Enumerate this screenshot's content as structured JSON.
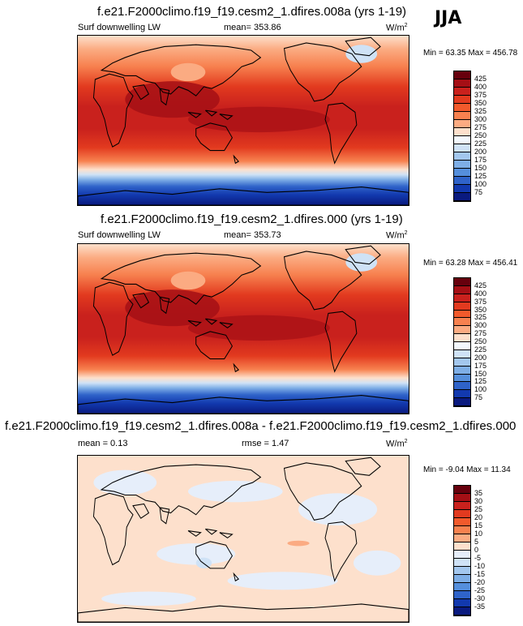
{
  "season": "JJA",
  "units_prefix": "W/m",
  "units_exp": "2",
  "panels": [
    {
      "title": "f.e21.F2000climo.f19_f19.cesm2_1.dfires.008a (yrs 1-19)",
      "left_label": "Surf downwelling LW",
      "stat1": "mean= 353.86",
      "stat2": "",
      "minmax": "Min = 63.35 Max = 456.78",
      "levels": [
        "425",
        "400",
        "375",
        "350",
        "325",
        "300",
        "275",
        "250",
        "225",
        "200",
        "175",
        "150",
        "125",
        "100",
        "75"
      ],
      "colors": [
        "#67000d",
        "#a50f15",
        "#c9211d",
        "#e23a1f",
        "#f25a2c",
        "#f7814f",
        "#fbab82",
        "#fde0cc",
        "#f3f8fd",
        "#cfe2f6",
        "#a3c7ee",
        "#7eaee6",
        "#558fdc",
        "#2f63c9",
        "#1239ae",
        "#0a1a7f"
      ]
    },
    {
      "title": "f.e21.F2000climo.f19_f19.cesm2_1.dfires.000 (yrs 1-19)",
      "left_label": "Surf downwelling LW",
      "stat1": "mean= 353.73",
      "stat2": "",
      "minmax": "Min = 63.28 Max = 456.41",
      "levels": [
        "425",
        "400",
        "375",
        "350",
        "325",
        "300",
        "275",
        "250",
        "225",
        "200",
        "175",
        "150",
        "125",
        "100",
        "75"
      ],
      "colors": [
        "#67000d",
        "#a50f15",
        "#c9211d",
        "#e23a1f",
        "#f25a2c",
        "#f7814f",
        "#fbab82",
        "#fde0cc",
        "#f3f8fd",
        "#cfe2f6",
        "#a3c7ee",
        "#7eaee6",
        "#558fdc",
        "#2f63c9",
        "#1239ae",
        "#0a1a7f"
      ]
    },
    {
      "title": "f.e21.F2000climo.f19_f19.cesm2_1.dfires.008a - f.e21.F2000climo.f19_f19.cesm2_1.dfires.000",
      "left_label": "mean =  0.13",
      "stat1": "rmse =  1.47",
      "stat2": "",
      "minmax": "Min = -9.04 Max = 11.34",
      "levels": [
        "35",
        "30",
        "25",
        "20",
        "15",
        "10",
        "5",
        "0",
        "-5",
        "-10",
        "-15",
        "-20",
        "-25",
        "-30",
        "-35"
      ],
      "colors": [
        "#67000d",
        "#a50f15",
        "#c9211d",
        "#e23a1f",
        "#f25a2c",
        "#f7814f",
        "#fbab82",
        "#fde0cc",
        "#e6eefa",
        "#cfe2f6",
        "#a3c7ee",
        "#7eaee6",
        "#558fdc",
        "#2f63c9",
        "#1239ae",
        "#0a1a7f"
      ]
    }
  ],
  "chart_data": [
    {
      "type": "heatmap",
      "title": "f.e21.F2000climo.f19_f19.cesm2_1.dfires.008a (yrs 1-19)",
      "variable": "Surf downwelling LW",
      "units": "W/m2",
      "mean": 353.86,
      "min": 63.35,
      "max": 456.78,
      "contour_levels": [
        75,
        100,
        125,
        150,
        175,
        200,
        225,
        250,
        275,
        300,
        325,
        350,
        375,
        400,
        425
      ]
    },
    {
      "type": "heatmap",
      "title": "f.e21.F2000climo.f19_f19.cesm2_1.dfires.000 (yrs 1-19)",
      "variable": "Surf downwelling LW",
      "units": "W/m2",
      "mean": 353.73,
      "min": 63.28,
      "max": 456.41,
      "contour_levels": [
        75,
        100,
        125,
        150,
        175,
        200,
        225,
        250,
        275,
        300,
        325,
        350,
        375,
        400,
        425
      ]
    },
    {
      "type": "heatmap",
      "title": "f.e21.F2000climo.f19_f19.cesm2_1.dfires.008a - f.e21.F2000climo.f19_f19.cesm2_1.dfires.000",
      "units": "W/m2",
      "mean": 0.13,
      "rmse": 1.47,
      "min": -9.04,
      "max": 11.34,
      "contour_levels": [
        -35,
        -30,
        -25,
        -20,
        -15,
        -10,
        -5,
        0,
        5,
        10,
        15,
        20,
        25,
        30,
        35
      ]
    }
  ]
}
